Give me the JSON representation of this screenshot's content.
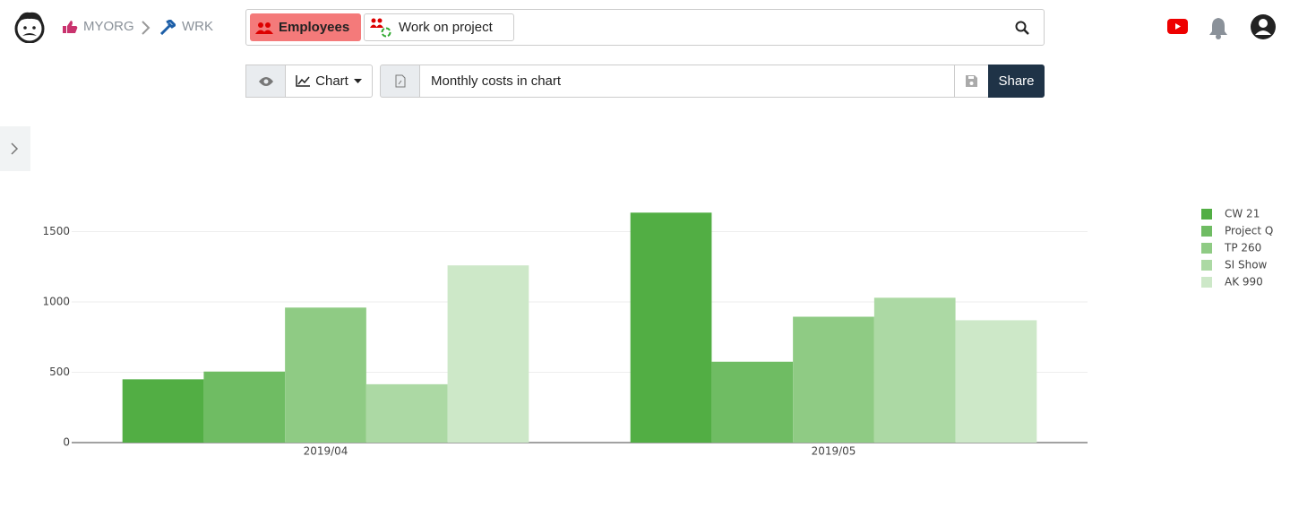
{
  "ui": {
    "breadcrumb": [
      "MYORG",
      "WRK"
    ],
    "tabs": [
      "Employees",
      "Work on project"
    ],
    "view_button": "Chart",
    "report_name": "Monthly costs in chart",
    "share_button": "Share"
  },
  "chart_data": {
    "type": "bar",
    "categories": [
      "2019/04",
      "2019/05"
    ],
    "series": [
      {
        "name": "CW 21",
        "color": "#52ae44",
        "values": [
          450,
          1635
        ]
      },
      {
        "name": "Project Q",
        "color": "#6fbc63",
        "values": [
          505,
          575
        ]
      },
      {
        "name": "TP 260",
        "color": "#8fcb84",
        "values": [
          960,
          895
        ]
      },
      {
        "name": "SI Show",
        "color": "#acd9a4",
        "values": [
          415,
          1030
        ]
      },
      {
        "name": "AK 990",
        "color": "#cde8c8",
        "values": [
          1260,
          870
        ]
      }
    ],
    "ylim": [
      0,
      1720
    ],
    "yticks": [
      0,
      500,
      1000,
      1500
    ],
    "grid": true,
    "legend": "right"
  }
}
